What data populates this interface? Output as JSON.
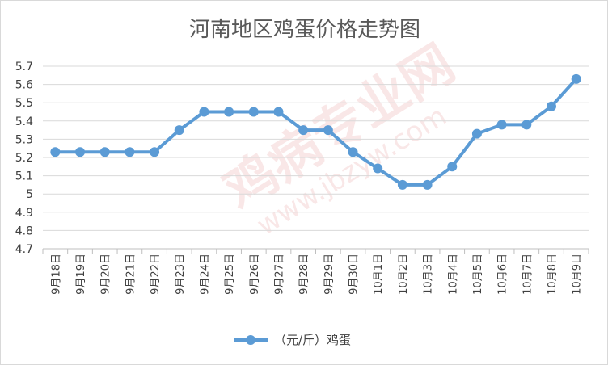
{
  "chart_data": {
    "type": "line",
    "title": "河南地区鸡蛋价格走势图",
    "categories": [
      "9月18日",
      "9月19日",
      "9月20日",
      "9月21日",
      "9月22日",
      "9月23日",
      "9月24日",
      "9月25日",
      "9月26日",
      "9月27日",
      "9月28日",
      "9月29日",
      "9月30日",
      "10月1日",
      "10月2日",
      "10月3日",
      "10月4日",
      "10月5日",
      "10月6日",
      "10月7日",
      "10月8日",
      "10月9日"
    ],
    "series": [
      {
        "name": "（元/斤）鸡蛋",
        "values": [
          5.23,
          5.23,
          5.23,
          5.23,
          5.23,
          5.35,
          5.45,
          5.45,
          5.45,
          5.45,
          5.35,
          5.35,
          5.23,
          5.14,
          5.05,
          5.05,
          5.15,
          5.33,
          5.38,
          5.38,
          5.48,
          5.63
        ]
      }
    ],
    "ylim": [
      4.7,
      5.7
    ],
    "yticks": [
      "4.7",
      "4.8",
      "4.9",
      "5",
      "5.1",
      "5.2",
      "5.3",
      "5.4",
      "5.5",
      "5.6",
      "5.7"
    ],
    "grid": true,
    "legend_position": "bottom",
    "line_color": "#5b9bd5"
  },
  "watermark": {
    "text_cn": "鸡病专业网",
    "text_url": "www.jbzyw.com"
  }
}
